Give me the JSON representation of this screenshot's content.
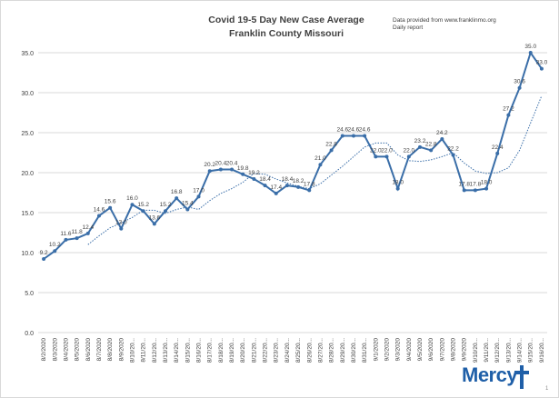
{
  "chart_data": {
    "type": "line",
    "title": "Covid 19-5 Day New Case Average",
    "subtitle": "Franklin County Missouri",
    "note_lines": [
      "Data provided from www.franklinmo.org",
      "Daily report"
    ],
    "xlabel": "",
    "ylabel": "",
    "ylim": [
      0,
      35
    ],
    "yticks": [
      "0.0",
      "5.0",
      "10.0",
      "15.0",
      "20.0",
      "25.0",
      "30.0",
      "35.0"
    ],
    "grid": true,
    "legend": "none",
    "categories": [
      "8/2/2020",
      "8/3/2020",
      "8/4/2020",
      "8/5/2020",
      "8/6/2020",
      "8/7/2020",
      "8/8/2020",
      "8/9/2020",
      "8/10/20...",
      "8/11/20...",
      "8/12/20...",
      "8/13/20...",
      "8/14/20...",
      "8/15/20...",
      "8/16/20...",
      "8/17/20...",
      "8/18/20...",
      "8/19/20...",
      "8/20/20...",
      "8/21/20...",
      "8/22/20...",
      "8/23/20...",
      "8/24/20...",
      "8/25/20...",
      "8/26/20...",
      "8/27/20...",
      "8/28/20...",
      "8/29/20...",
      "8/30/20...",
      "8/31/20...",
      "9/1/2020",
      "9/2/2020",
      "9/3/2020",
      "9/4/2020",
      "9/5/2020",
      "9/6/2020",
      "9/7/2020",
      "9/8/2020",
      "9/9/2020",
      "9/10/20...",
      "9/11/20...",
      "9/12/20...",
      "9/13/20...",
      "9/14/20...",
      "9/15/20...",
      "9/16/20..."
    ],
    "series": [
      {
        "values": [
          9.2,
          10.2,
          11.6,
          11.8,
          12.4,
          14.6,
          15.6,
          13.0,
          16.0,
          15.2,
          13.6,
          15.2,
          16.8,
          15.4,
          17.0,
          20.2,
          20.4,
          20.4,
          19.8,
          19.2,
          18.4,
          17.4,
          18.4,
          18.2,
          17.8,
          21.0,
          22.8,
          24.6,
          24.6,
          24.6,
          22.0,
          22.0,
          18.0,
          22.0,
          23.2,
          22.8,
          24.2,
          22.2,
          17.8,
          17.8,
          18.0,
          22.4,
          27.2,
          30.6,
          35.0,
          33.0
        ],
        "labels": [
          "9.2",
          "10.2",
          "11.6",
          "11.8",
          "12.4",
          "14.6",
          "15.6",
          "13.0",
          "16.0",
          "15.2",
          "13.6",
          "15.2",
          "16.8",
          "15.4",
          "17.0",
          "20.2",
          "20.4",
          "20.4",
          "19.8",
          "19.2",
          "18.4",
          "17.4",
          "18.4",
          "18.2",
          "17.8",
          "21.0",
          "22.8",
          "24.6",
          "24.6",
          "24.6",
          "22.0",
          "22.0",
          "18.0",
          "22.0",
          "23.2",
          "22.8",
          "24.2",
          "22.2",
          "17.8",
          "17.8",
          "18.0",
          "22.4",
          "27.2",
          "30.6",
          "35.0",
          "33.0"
        ],
        "color": "#3a6ea8",
        "style": "solid-markers"
      },
      {
        "values": [
          null,
          null,
          null,
          null,
          11.0,
          12.1,
          13.1,
          13.7,
          14.4,
          15.3,
          15.3,
          14.9,
          15.4,
          15.7,
          15.4,
          16.5,
          17.4,
          18.0,
          18.8,
          19.9,
          19.8,
          19.2,
          18.7,
          18.3,
          18.0,
          18.6,
          19.7,
          20.8,
          22.0,
          23.2,
          23.7,
          23.7,
          22.2,
          21.5,
          21.4,
          21.6,
          22.0,
          22.5,
          21.2,
          20.2,
          19.9,
          20.0,
          20.6,
          22.8,
          26.2,
          29.6
        ],
        "color": "#3a6ea8",
        "style": "dotted"
      }
    ]
  },
  "branding": {
    "logo_text": "Mercy",
    "logo_mark": "1"
  },
  "colors": {
    "line": "#3a6ea8",
    "grid": "#d9d9d9",
    "text": "#404040",
    "logo": "#1f5fa8"
  }
}
